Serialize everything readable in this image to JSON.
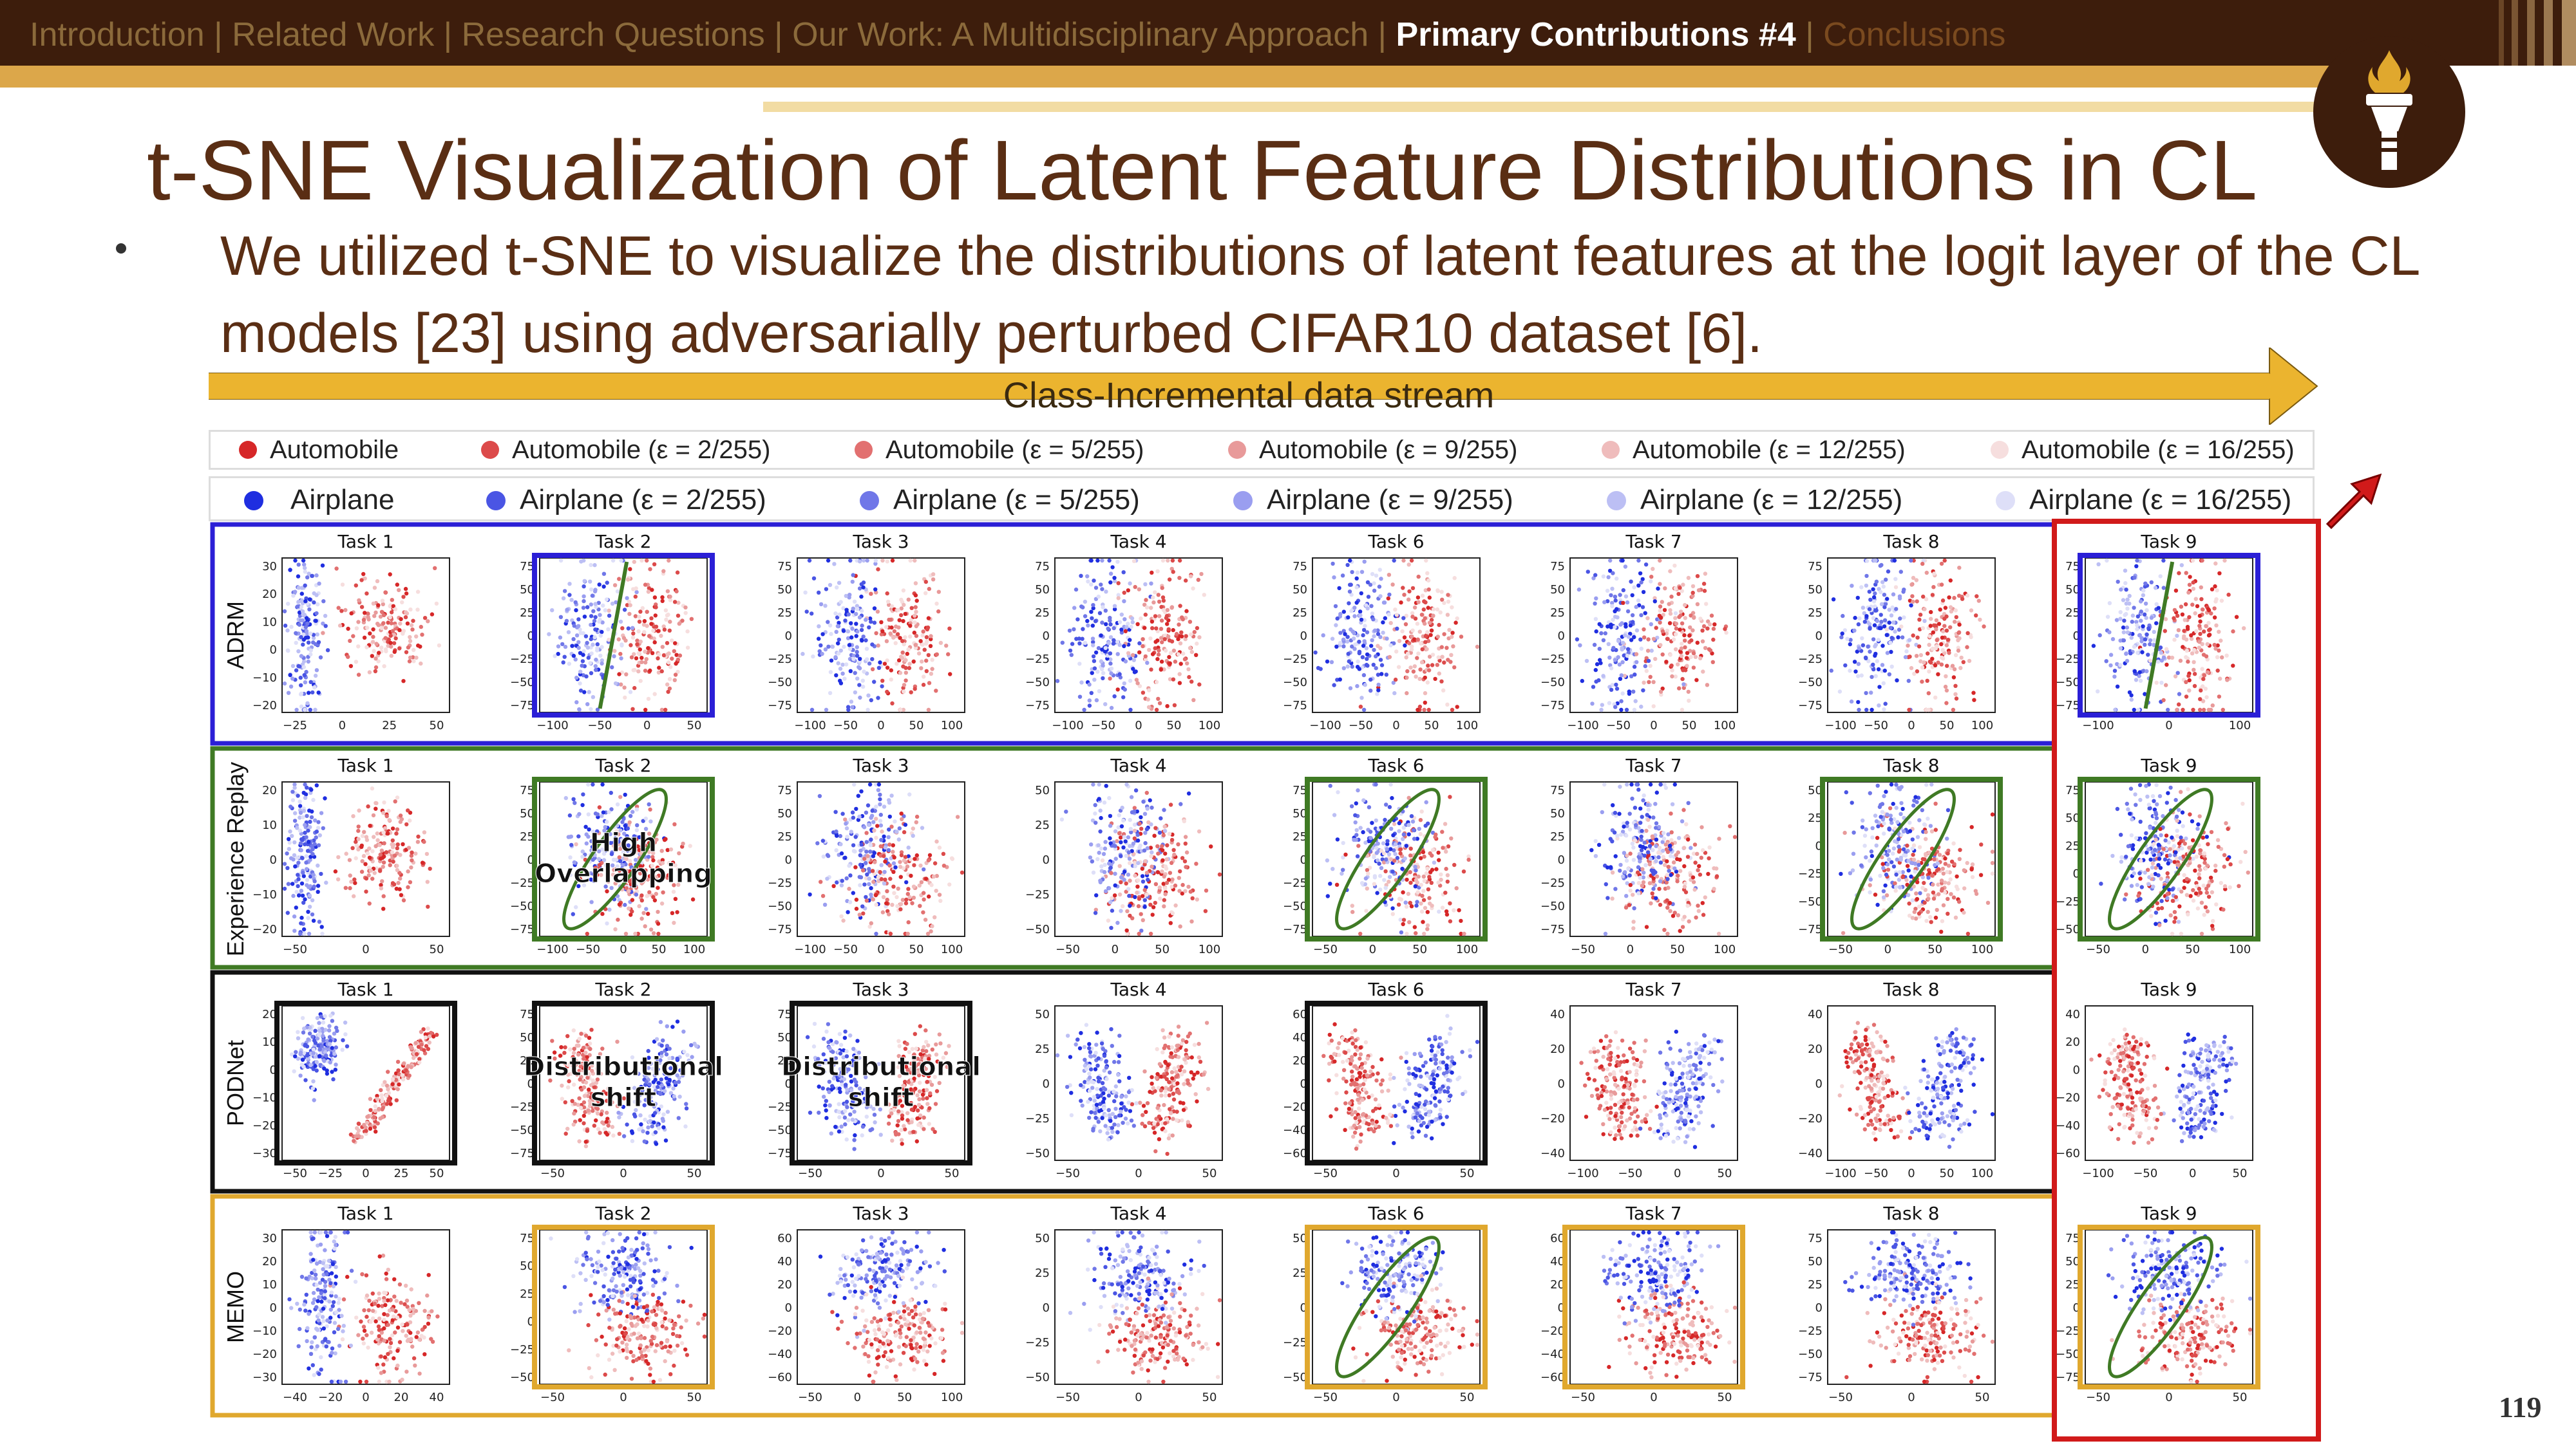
{
  "nav": {
    "items": [
      "Introduction",
      "Related Work",
      "Research Questions",
      "Our Work: A Multidisciplinary Approach",
      "Primary Contributions #4",
      "Conclusions"
    ],
    "active": "Primary Contributions #4",
    "separator": "|"
  },
  "title": "t-SNE Visualization of Latent Feature Distributions in CL",
  "bullet": "We utilized t-SNE to visualize the distributions of latent features at the logit layer of the CL models [23] using adversarially perturbed CIFAR10 dataset [6].",
  "stream_label": "Class-Incremental data stream",
  "legend": {
    "automobile": [
      "Automobile",
      "Automobile (ε = 2/255)",
      "Automobile (ε = 5/255)",
      "Automobile (ε = 9/255)",
      "Automobile (ε = 12/255)",
      "Automobile (ε = 16/255)"
    ],
    "airplane": [
      "Airplane",
      "Airplane (ε = 2/255)",
      "Airplane (ε = 5/255)",
      "Airplane (ε = 9/255)",
      "Airplane (ε = 12/255)",
      "Airplane (ε = 16/255)"
    ],
    "automobile_colors": [
      "#d62728",
      "#dc4a4a",
      "#e27070",
      "#e89a9a",
      "#efbcbc",
      "#f6dede"
    ],
    "airplane_colors": [
      "#1f2ee0",
      "#4a55e4",
      "#7077e8",
      "#9a9ef0",
      "#bcbff4",
      "#dedff8"
    ]
  },
  "rows": [
    {
      "method": "ADRM",
      "frame_color": "#2b1fd6",
      "panels": [
        {
          "task": "Task 1",
          "yticks": [
            "30",
            "20",
            "10",
            "0",
            "−10",
            "−20"
          ],
          "xticks": [
            "−25",
            "0",
            "25",
            "50"
          ],
          "layout": "separated",
          "frame": null
        },
        {
          "task": "Task 2",
          "yticks": [
            "75",
            "50",
            "25",
            "0",
            "−25",
            "−50",
            "−75"
          ],
          "xticks": [
            "−100",
            "−50",
            "0",
            "50"
          ],
          "layout": "split",
          "frame": "#2b1fd6",
          "line": true
        },
        {
          "task": "Task 3",
          "yticks": [
            "75",
            "50",
            "25",
            "0",
            "−25",
            "−50",
            "−75"
          ],
          "xticks": [
            "−100",
            "−50",
            "0",
            "50",
            "100"
          ],
          "layout": "split",
          "frame": null
        },
        {
          "task": "Task 4",
          "yticks": [
            "75",
            "50",
            "25",
            "0",
            "−25",
            "−50",
            "−75"
          ],
          "xticks": [
            "−100",
            "−50",
            "0",
            "50",
            "100"
          ],
          "layout": "split",
          "frame": null
        },
        {
          "task": "Task 6",
          "yticks": [
            "75",
            "50",
            "25",
            "0",
            "−25",
            "−50",
            "−75"
          ],
          "xticks": [
            "−100",
            "−50",
            "0",
            "50",
            "100"
          ],
          "layout": "split",
          "frame": null
        },
        {
          "task": "Task 7",
          "yticks": [
            "75",
            "50",
            "25",
            "0",
            "−25",
            "−50",
            "−75"
          ],
          "xticks": [
            "−100",
            "−50",
            "0",
            "50",
            "100"
          ],
          "layout": "split",
          "frame": null
        },
        {
          "task": "Task 8",
          "yticks": [
            "75",
            "50",
            "25",
            "0",
            "−25",
            "−50",
            "−75"
          ],
          "xticks": [
            "−100",
            "−50",
            "0",
            "50",
            "100"
          ],
          "layout": "split",
          "frame": null
        },
        {
          "task": "Task 9",
          "yticks": [
            "75",
            "50",
            "25",
            "0",
            "−25",
            "−50",
            "−75"
          ],
          "xticks": [
            "−100",
            "0",
            "100"
          ],
          "layout": "split",
          "frame": "#2b1fd6",
          "line": true
        }
      ]
    },
    {
      "method": "Experience Replay",
      "frame_color": "#3f7a24",
      "panels": [
        {
          "task": "Task 1",
          "yticks": [
            "20",
            "10",
            "0",
            "−10",
            "−20"
          ],
          "xticks": [
            "−50",
            "0",
            "50"
          ],
          "layout": "separated",
          "frame": null
        },
        {
          "task": "Task 2",
          "yticks": [
            "75",
            "50",
            "25",
            "0",
            "−25",
            "−50",
            "−75"
          ],
          "xticks": [
            "−100",
            "−50",
            "0",
            "50",
            "100"
          ],
          "layout": "overlap",
          "frame": "#3f7a24",
          "ellipse": true,
          "note": "High Overlapping"
        },
        {
          "task": "Task 3",
          "yticks": [
            "75",
            "50",
            "25",
            "0",
            "−25",
            "−50",
            "−75"
          ],
          "xticks": [
            "−100",
            "−50",
            "0",
            "50",
            "100"
          ],
          "layout": "overlap",
          "frame": null
        },
        {
          "task": "Task 4",
          "yticks": [
            "50",
            "25",
            "0",
            "−25",
            "−50"
          ],
          "xticks": [
            "−50",
            "0",
            "50",
            "100"
          ],
          "layout": "overlap",
          "frame": null
        },
        {
          "task": "Task 6",
          "yticks": [
            "75",
            "50",
            "25",
            "0",
            "−25",
            "−50",
            "−75"
          ],
          "xticks": [
            "−50",
            "0",
            "50",
            "100"
          ],
          "layout": "overlap",
          "frame": "#3f7a24",
          "ellipse": true
        },
        {
          "task": "Task 7",
          "yticks": [
            "75",
            "50",
            "25",
            "0",
            "−25",
            "−50",
            "−75"
          ],
          "xticks": [
            "−50",
            "0",
            "50",
            "100"
          ],
          "layout": "overlap",
          "frame": null
        },
        {
          "task": "Task 8",
          "yticks": [
            "50",
            "25",
            "0",
            "−25",
            "−50",
            "−75"
          ],
          "xticks": [
            "−50",
            "0",
            "50",
            "100"
          ],
          "layout": "overlap",
          "frame": "#3f7a24",
          "ellipse": true
        },
        {
          "task": "Task 9",
          "yticks": [
            "75",
            "50",
            "25",
            "0",
            "−25",
            "−50"
          ],
          "xticks": [
            "−50",
            "0",
            "50",
            "100"
          ],
          "layout": "overlap",
          "frame": "#3f7a24",
          "ellipse": true
        }
      ]
    },
    {
      "method": "PODNet",
      "frame_color": "#111111",
      "panels": [
        {
          "task": "Task 1",
          "yticks": [
            "20",
            "10",
            "0",
            "−10",
            "−20",
            "−30"
          ],
          "xticks": [
            "−50",
            "−25",
            "0",
            "25",
            "50"
          ],
          "layout": "diagonal",
          "frame": "#111111"
        },
        {
          "task": "Task 2",
          "yticks": [
            "75",
            "50",
            "25",
            "0",
            "−25",
            "−50",
            "−75"
          ],
          "xticks": [
            "−50",
            "0",
            "50"
          ],
          "layout": "vshape_flip",
          "frame": "#111111",
          "note": "Distributional shift"
        },
        {
          "task": "Task 3",
          "yticks": [
            "75",
            "50",
            "25",
            "0",
            "−25",
            "−50",
            "−75"
          ],
          "xticks": [
            "−50",
            "0",
            "50"
          ],
          "layout": "vshape",
          "frame": "#111111",
          "note": "Distributional shift"
        },
        {
          "task": "Task 4",
          "yticks": [
            "50",
            "25",
            "0",
            "−25",
            "−50"
          ],
          "xticks": [
            "−50",
            "0",
            "50"
          ],
          "layout": "vshape",
          "frame": null
        },
        {
          "task": "Task 6",
          "yticks": [
            "60",
            "40",
            "20",
            "0",
            "−20",
            "−40",
            "−60"
          ],
          "xticks": [
            "−50",
            "0",
            "50"
          ],
          "layout": "vshape_flip",
          "frame": "#111111"
        },
        {
          "task": "Task 7",
          "yticks": [
            "40",
            "20",
            "0",
            "−20",
            "−40"
          ],
          "xticks": [
            "−100",
            "−50",
            "0",
            "50"
          ],
          "layout": "vshape_flip",
          "frame": null
        },
        {
          "task": "Task 8",
          "yticks": [
            "40",
            "20",
            "0",
            "−20",
            "−40"
          ],
          "xticks": [
            "−100",
            "−50",
            "0",
            "50",
            "100"
          ],
          "layout": "vshape_flip",
          "frame": null
        },
        {
          "task": "Task 9",
          "yticks": [
            "40",
            "20",
            "0",
            "−20",
            "−40",
            "−60"
          ],
          "xticks": [
            "−100",
            "−50",
            "0",
            "50"
          ],
          "layout": "vshape_flip",
          "frame": null
        }
      ]
    },
    {
      "method": "MEMO",
      "frame_color": "#e0a82e",
      "panels": [
        {
          "task": "Task 1",
          "yticks": [
            "30",
            "20",
            "10",
            "0",
            "−10",
            "−20",
            "−30"
          ],
          "xticks": [
            "−40",
            "−20",
            "0",
            "20",
            "40"
          ],
          "layout": "separated_v",
          "frame": null
        },
        {
          "task": "Task 2",
          "yticks": [
            "75",
            "50",
            "25",
            "0",
            "−25",
            "−50"
          ],
          "xticks": [
            "−50",
            "0",
            "50"
          ],
          "layout": "blob",
          "frame": "#e0a82e"
        },
        {
          "task": "Task 3",
          "yticks": [
            "60",
            "40",
            "20",
            "0",
            "−20",
            "−40",
            "−60"
          ],
          "xticks": [
            "−50",
            "0",
            "50",
            "100"
          ],
          "layout": "blob",
          "frame": null
        },
        {
          "task": "Task 4",
          "yticks": [
            "50",
            "25",
            "0",
            "−25",
            "−50"
          ],
          "xticks": [
            "−50",
            "0",
            "50"
          ],
          "layout": "blob",
          "frame": null
        },
        {
          "task": "Task 6",
          "yticks": [
            "50",
            "25",
            "0",
            "−25",
            "−50"
          ],
          "xticks": [
            "−50",
            "0",
            "50"
          ],
          "layout": "blob",
          "frame": "#e0a82e",
          "ellipse": true
        },
        {
          "task": "Task 7",
          "yticks": [
            "60",
            "40",
            "20",
            "0",
            "−20",
            "−40",
            "−60"
          ],
          "xticks": [
            "−50",
            "0",
            "50"
          ],
          "layout": "blob",
          "frame": "#e0a82e"
        },
        {
          "task": "Task 8",
          "yticks": [
            "75",
            "50",
            "25",
            "0",
            "−25",
            "−50",
            "−75"
          ],
          "xticks": [
            "−50",
            "0",
            "50"
          ],
          "layout": "blob",
          "frame": null
        },
        {
          "task": "Task 9",
          "yticks": [
            "75",
            "50",
            "25",
            "0",
            "−25",
            "−50",
            "−75"
          ],
          "xticks": [
            "−50",
            "0",
            "50"
          ],
          "layout": "blob",
          "frame": "#e0a82e",
          "ellipse": true
        }
      ]
    }
  ],
  "highlight_column_color": "#d11a1a",
  "page_number": "119"
}
